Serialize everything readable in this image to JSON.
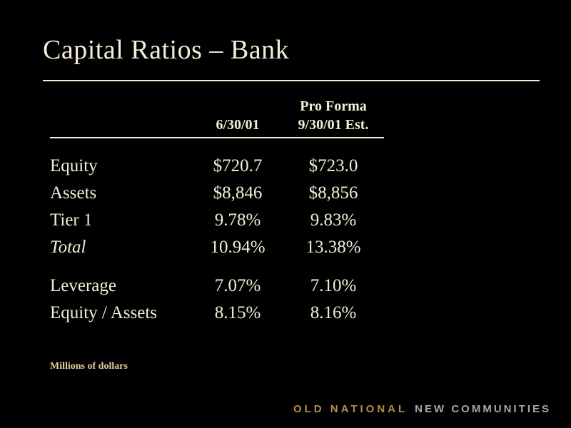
{
  "slide": {
    "title": "Capital Ratios – Bank",
    "footnote": "Millions of dollars"
  },
  "table": {
    "header": {
      "col1": "6/30/01",
      "col2_line1": "Pro Forma",
      "col2_line2": "9/30/01 Est."
    },
    "group1": [
      {
        "label": "Equity",
        "col1": "$720.7",
        "col2": "$723.0"
      },
      {
        "label": "Assets",
        "col1": "$8,846",
        "col2": "$8,856"
      },
      {
        "label": "Tier 1",
        "col1": "9.78%",
        "col2": "9.83%"
      },
      {
        "label": "Total",
        "col1": "10.94%",
        "col2": "13.38%"
      }
    ],
    "group2": [
      {
        "label": "Leverage",
        "col1": "7.07%",
        "col2": "7.10%"
      },
      {
        "label": "Equity / Assets",
        "col1": "8.15%",
        "col2": "8.16%"
      }
    ]
  },
  "brand": {
    "primary": "OLD NATIONAL",
    "secondary": "NEW COMMUNITIES"
  },
  "colors": {
    "background": "#000000",
    "text_cream": "#f3edd6",
    "footnote_tan": "#e3cf9e",
    "brand_gold": "#b68c4a",
    "brand_gray": "#a6a6a6"
  }
}
